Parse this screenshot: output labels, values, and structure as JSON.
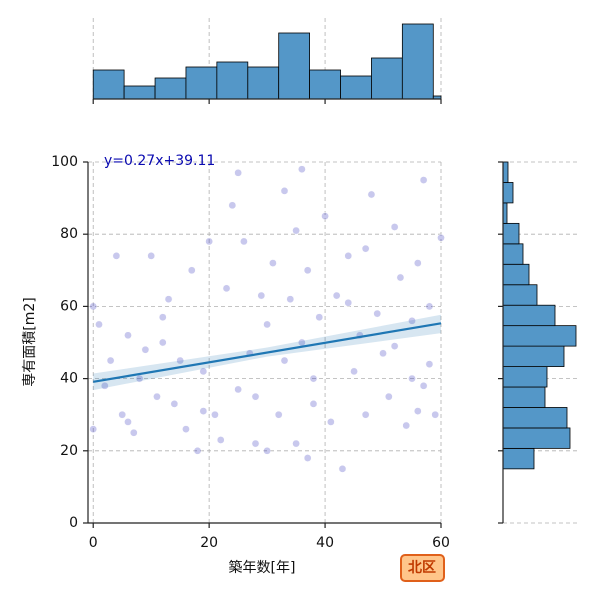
{
  "chart_data": [
    {
      "type": "scatter",
      "xlabel": "築年数[年]",
      "ylabel": "専有面積[m2]",
      "xlim": [
        -0.9,
        60
      ],
      "ylim": [
        0,
        100
      ],
      "xticks": [
        0,
        20,
        40,
        60
      ],
      "yticks": [
        0,
        20,
        40,
        60,
        80,
        100
      ],
      "grid": true,
      "color": "#3a3ac0",
      "x": [
        0,
        0,
        1,
        2,
        3,
        4,
        5,
        6,
        7,
        8,
        9,
        10,
        11,
        12,
        13,
        14,
        15,
        16,
        17,
        18,
        19,
        20,
        21,
        22,
        23,
        24,
        25,
        26,
        27,
        28,
        29,
        30,
        30,
        31,
        32,
        33,
        33,
        34,
        35,
        35,
        36,
        37,
        37,
        38,
        38,
        39,
        40,
        41,
        42,
        43,
        44,
        45,
        46,
        47,
        48,
        49,
        50,
        51,
        52,
        53,
        54,
        55,
        55,
        56,
        56,
        57,
        57,
        58,
        58,
        59,
        60,
        25,
        28,
        36,
        44,
        52,
        19,
        12,
        6,
        47
      ],
      "y": [
        26,
        60,
        55,
        38,
        45,
        74,
        30,
        52,
        25,
        40,
        48,
        74,
        35,
        50,
        62,
        33,
        45,
        26,
        70,
        20,
        42,
        78,
        30,
        23,
        65,
        88,
        37,
        78,
        47,
        22,
        63,
        20,
        55,
        72,
        30,
        92,
        45,
        62,
        22,
        81,
        50,
        18,
        70,
        40,
        33,
        57,
        85,
        28,
        63,
        15,
        74,
        42,
        52,
        30,
        91,
        58,
        47,
        35,
        82,
        68,
        27,
        40,
        56,
        31,
        72,
        38,
        95,
        44,
        60,
        30,
        79,
        97,
        35,
        98,
        61,
        49,
        31,
        57,
        28,
        76
      ],
      "regression": {
        "slope": 0.27,
        "intercept": 39.11,
        "annotation": "y=0.27x+39.11",
        "line_color": "#1f77b4",
        "ci_x": [
          0,
          30,
          60
        ],
        "ci_lower": [
          36.8,
          46.1,
          52.6
        ],
        "ci_upper": [
          41.4,
          48.6,
          57.7
        ]
      },
      "badge": "北区"
    },
    {
      "type": "histogram",
      "orientation": "vertical",
      "color": "#5497c8",
      "bins": [
        0,
        5.33,
        10.67,
        16,
        21.33,
        26.67,
        32,
        37.33,
        42.67,
        48,
        53.33,
        58.67,
        60
      ],
      "values": [
        29,
        13,
        21,
        32,
        37,
        32,
        66,
        29,
        23,
        41,
        75,
        3
      ],
      "ylim": [
        0,
        78
      ]
    },
    {
      "type": "histogram",
      "orientation": "horizontal",
      "color": "#5497c8",
      "bins": [
        15,
        20.67,
        26.33,
        32,
        37.67,
        43.33,
        49,
        54.67,
        60.33,
        66,
        71.67,
        77.33,
        83,
        88.67,
        94.33,
        100
      ],
      "values": [
        31,
        67,
        64,
        42,
        44,
        61,
        73,
        52,
        34,
        26,
        20,
        16,
        4,
        10,
        5
      ],
      "xlim": [
        0,
        73
      ]
    }
  ]
}
